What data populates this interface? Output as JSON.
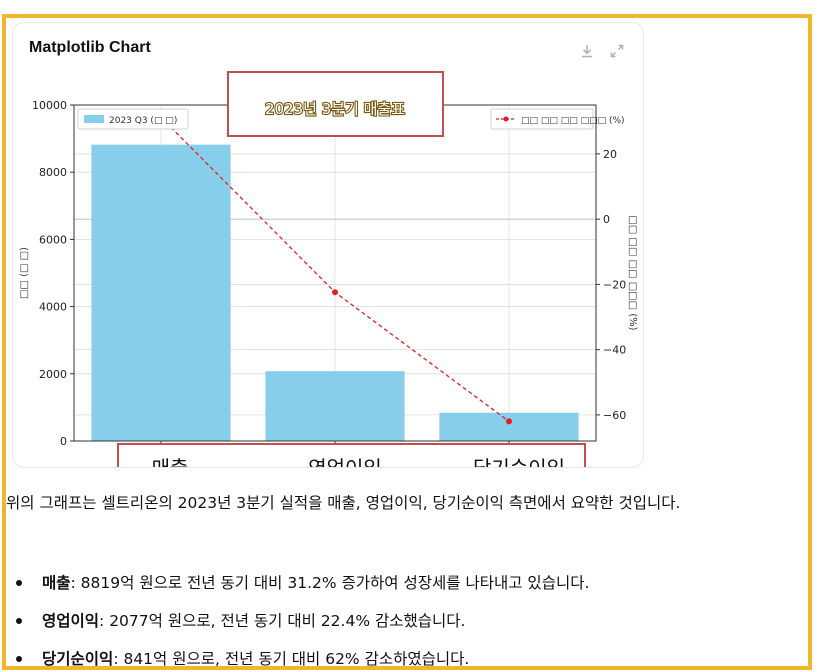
{
  "card": {
    "title": "Matplotlib Chart"
  },
  "icons": {
    "download": "download-icon",
    "expand": "expand-icon"
  },
  "chart_data": {
    "type": "bar",
    "title": "2023년 3분기 매출표",
    "categories": [
      "매출",
      "영업이익",
      "당기순이익"
    ],
    "series": [
      {
        "name": "2023 Q3 (□ □)",
        "values": [
          8819,
          2077,
          841
        ],
        "color": "#87ceeb",
        "axis": "left"
      },
      {
        "name": "□□ □□ □□ □□□ (%)",
        "values": [
          31.2,
          -22.4,
          -62
        ],
        "color": "#e02020",
        "axis": "right",
        "style": "line-dashed"
      }
    ],
    "ylabel": "□□ (□ □)",
    "y2label": "□□ □□ □□ □□□ (%)",
    "ylim": [
      0,
      10000
    ],
    "yticks": [
      0,
      2000,
      4000,
      6000,
      8000,
      10000
    ],
    "y2lim": [
      -68,
      35
    ],
    "y2ticks": [
      20,
      0,
      -20,
      -40,
      -60
    ],
    "grid": true,
    "legend": [
      "top-left",
      "top-right"
    ]
  },
  "text": {
    "paragraph": "위의 그래프는 셀트리온의 2023년 3분기 실적을 매출, 영업이익, 당기순이익 측면에서 요약한 것입니다.",
    "bullets": [
      {
        "label": "매출",
        "text": ": 8819억 원으로 전년 동기 대비 31.2% 증가하여 성장세를 나타내고 있습니다."
      },
      {
        "label": "영업이익",
        "text": ": 2077억 원으로, 전년 동기 대비 22.4% 감소했습니다."
      },
      {
        "label": "당기순이익",
        "text": ": 841억 원으로, 전년 동기 대비 62% 감소하였습니다."
      }
    ]
  }
}
